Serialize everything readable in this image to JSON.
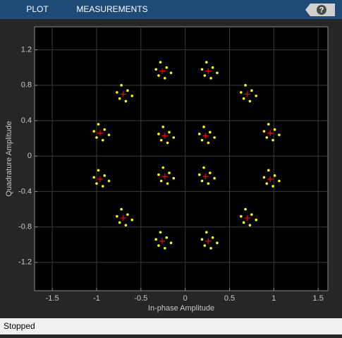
{
  "toolbar": {
    "tabs": [
      "PLOT",
      "MEASUREMENTS"
    ],
    "help": "?"
  },
  "status": "Stopped",
  "chart_data": {
    "type": "scatter",
    "xlabel": "In-phase Amplitude",
    "ylabel": "Quadrature Amplitude",
    "xlim": [
      -1.7,
      1.61
    ],
    "ylim": [
      -1.52,
      1.46
    ],
    "xticks": [
      -1.5,
      -1,
      -0.5,
      0,
      0.5,
      1,
      1.5
    ],
    "yticks": [
      -1.2,
      -0.8,
      -0.4,
      0,
      0.4,
      0.8,
      1.2
    ],
    "grid": true,
    "series": [
      {
        "color": "#ffff00",
        "marker": "dot",
        "x": [
          0.28,
          0.16,
          0.26,
          0.19,
          0.33,
          0.21,
          -0.18,
          -0.3,
          -0.2,
          -0.27,
          -0.13,
          -0.25,
          -0.18,
          -0.3,
          -0.2,
          -0.27,
          -0.13,
          -0.25,
          0.28,
          0.16,
          0.26,
          0.19,
          0.33,
          0.21,
          1.01,
          0.89,
          0.99,
          0.92,
          1.06,
          0.94,
          0.75,
          0.63,
          0.73,
          0.66,
          0.8,
          0.68,
          0.31,
          0.19,
          0.29,
          0.22,
          0.36,
          0.24,
          -0.21,
          -0.33,
          -0.23,
          -0.3,
          -0.16,
          -0.28,
          -0.65,
          -0.77,
          -0.67,
          -0.74,
          -0.6,
          -0.72,
          -0.91,
          -1.03,
          -0.93,
          -1.0,
          -0.86,
          -0.98,
          -0.91,
          -1.03,
          -0.93,
          -1.0,
          -0.86,
          -0.98,
          -0.65,
          -0.77,
          -0.67,
          -0.74,
          -0.6,
          -0.72,
          -0.21,
          -0.33,
          -0.23,
          -0.3,
          -0.16,
          -0.28,
          0.31,
          0.19,
          0.29,
          0.22,
          0.36,
          0.24,
          0.75,
          0.63,
          0.73,
          0.66,
          0.8,
          0.68,
          1.01,
          0.89,
          0.99,
          0.92,
          1.06,
          0.94
        ],
        "y": [
          0.27,
          0.25,
          0.15,
          0.18,
          0.21,
          0.33,
          0.27,
          0.25,
          0.15,
          0.18,
          0.21,
          0.33,
          -0.19,
          -0.21,
          -0.31,
          -0.28,
          -0.25,
          -0.13,
          -0.19,
          -0.21,
          -0.31,
          -0.28,
          -0.25,
          -0.13,
          0.3,
          0.28,
          0.18,
          0.21,
          0.24,
          0.36,
          0.74,
          0.72,
          0.62,
          0.65,
          0.68,
          0.8,
          1.0,
          0.98,
          0.88,
          0.91,
          0.94,
          1.06,
          1.0,
          0.98,
          0.88,
          0.91,
          0.94,
          1.06,
          0.74,
          0.72,
          0.62,
          0.65,
          0.68,
          0.8,
          0.3,
          0.28,
          0.18,
          0.21,
          0.24,
          0.36,
          -0.22,
          -0.24,
          -0.34,
          -0.31,
          -0.28,
          -0.16,
          -0.66,
          -0.68,
          -0.78,
          -0.75,
          -0.72,
          -0.6,
          -0.92,
          -0.94,
          -1.04,
          -1.01,
          -0.98,
          -0.86,
          -0.92,
          -0.94,
          -1.04,
          -1.01,
          -0.98,
          -0.86,
          -0.66,
          -0.68,
          -0.78,
          -0.75,
          -0.72,
          -0.6,
          -0.22,
          -0.24,
          -0.34,
          -0.31,
          -0.28,
          -0.16
        ]
      },
      {
        "color": "#ff0000",
        "marker": "plus",
        "x": [
          0.23,
          -0.23,
          -0.23,
          0.23,
          0.96,
          0.7,
          0.26,
          -0.26,
          -0.7,
          -0.96,
          -0.96,
          -0.7,
          -0.26,
          0.26,
          0.7,
          0.96
        ],
        "y": [
          0.23,
          0.23,
          -0.23,
          -0.23,
          0.26,
          0.7,
          0.96,
          0.96,
          0.7,
          0.26,
          -0.26,
          -0.7,
          -0.96,
          -0.96,
          -0.7,
          -0.26
        ]
      }
    ]
  }
}
